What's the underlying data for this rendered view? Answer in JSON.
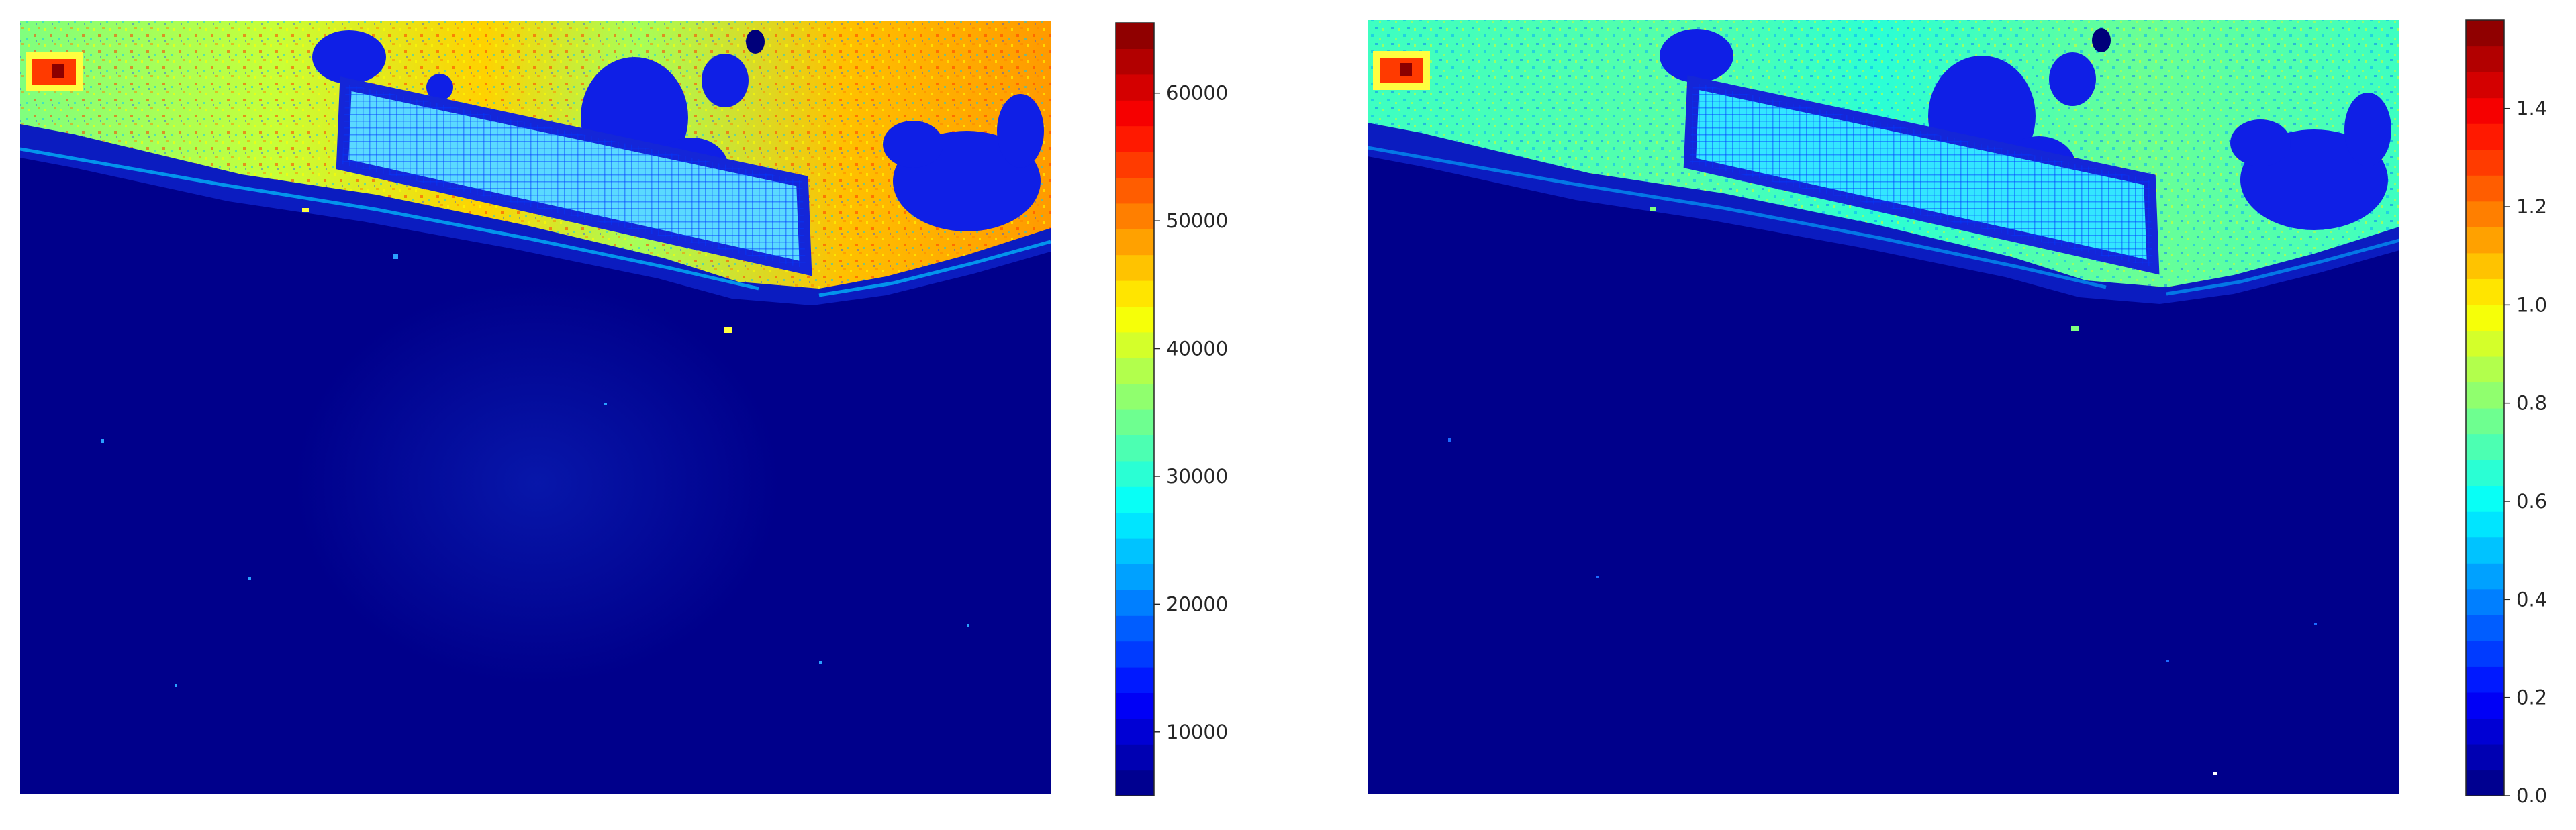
{
  "figure": {
    "background": "#ffffff",
    "colormap": "jet",
    "colormap_stops": [
      "#00007f",
      "#0000ff",
      "#007fff",
      "#00ffff",
      "#7fff7f",
      "#ffff00",
      "#ff7f00",
      "#ff0000",
      "#7f0000"
    ]
  },
  "chart_data": [
    {
      "type": "heatmap",
      "title": "",
      "xlabel": "",
      "ylabel": "",
      "axes_visible": false,
      "grid": false,
      "colorbar": {
        "position": "right",
        "range": [
          5000,
          65500
        ],
        "levels": 30,
        "ticks": [
          10000,
          20000,
          30000,
          40000,
          50000,
          60000
        ],
        "tick_labels": [
          "10000",
          "20000",
          "30000",
          "40000",
          "50000",
          "60000"
        ]
      },
      "image_description_values": {
        "water_region": 6000,
        "bright_vegetation_region": 50000,
        "building_roof_region": 30000,
        "hotspot_value": 65000
      }
    },
    {
      "type": "heatmap",
      "title": "",
      "xlabel": "",
      "ylabel": "",
      "axes_visible": false,
      "grid": false,
      "colorbar": {
        "position": "right",
        "range": [
          0.0,
          1.58
        ],
        "levels": 30,
        "ticks": [
          0.0,
          0.2,
          0.4,
          0.6,
          0.8,
          1.0,
          1.2,
          1.4
        ],
        "tick_labels": [
          "0.0",
          "0.2",
          "0.4",
          "0.6",
          "0.8",
          "1.0",
          "1.2",
          "1.4"
        ]
      },
      "image_description_values": {
        "water_region": 0.0,
        "bright_vegetation_region": 0.7,
        "building_roof_region": 0.55,
        "hotspot_value": 1.5
      }
    }
  ]
}
